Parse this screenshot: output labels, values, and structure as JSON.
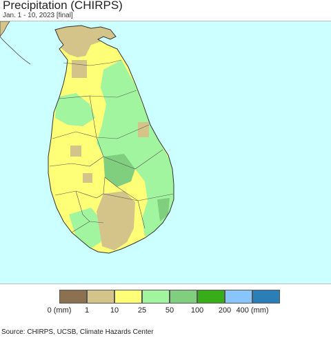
{
  "map": {
    "title": "Precipitation (CHIRPS)",
    "subtitle": "Jan. 1 - 10, 2023 [final]",
    "source": "Source: CHIRPS, UCSB, Climate Hazards Center",
    "colors": {
      "ocean": "#ccffff",
      "land_outside": "#d4c48a",
      "boundary": "#444444"
    }
  },
  "legend": {
    "unit_label": "(mm)",
    "classes": [
      {
        "color": "#8b7150",
        "label": "0 (mm)"
      },
      {
        "color": "#d4c48a",
        "label": "1"
      },
      {
        "color": "#ffff77",
        "label": "10"
      },
      {
        "color": "#a1f59e",
        "label": "25"
      },
      {
        "color": "#7fcf7f",
        "label": "50"
      },
      {
        "color": "#37ad17",
        "label": "100"
      },
      {
        "color": "#87c5fb",
        "label": "200"
      },
      {
        "color": "#2b7fb8",
        "label": "400 (mm)"
      }
    ]
  }
}
